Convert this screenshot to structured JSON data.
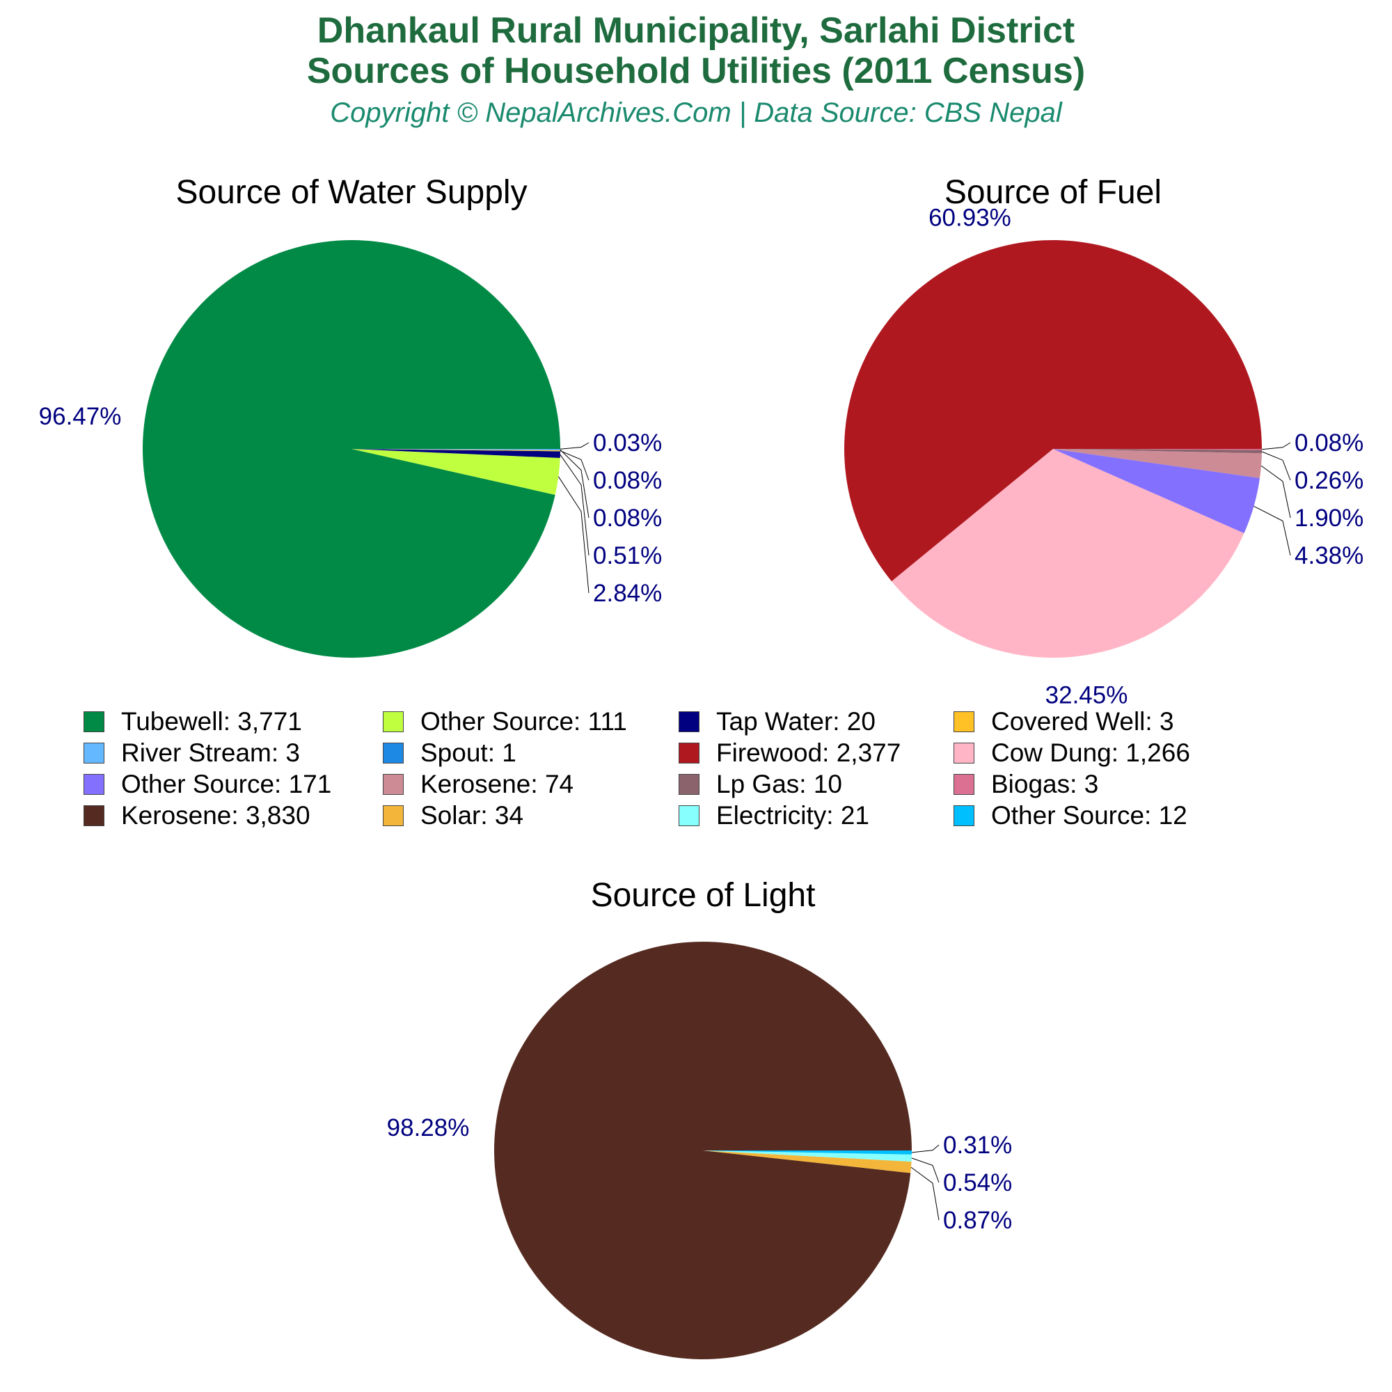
{
  "header": {
    "title_line1": "Dhankaul Rural Municipality, Sarlahi District",
    "title_line2": "Sources of Household Utilities (2011 Census)",
    "subtitle": "Copyright © NepalArchives.Com | Data Source: CBS Nepal"
  },
  "chart_data": [
    {
      "type": "pie",
      "title": "Source of Water Supply",
      "slices": [
        {
          "label": "Tubewell",
          "value": 3771,
          "percent_label": "96.47%",
          "color": "#008a45"
        },
        {
          "label": "Other Source",
          "value": 111,
          "percent_label": "2.84%",
          "color": "#bfff3f"
        },
        {
          "label": "Tap Water",
          "value": 20,
          "percent_label": "0.51%",
          "color": "#000080"
        },
        {
          "label": "Covered Well",
          "value": 3,
          "percent_label": "0.08%",
          "color": "#ffc125"
        },
        {
          "label": "River Stream",
          "value": 3,
          "percent_label": "0.08%",
          "color": "#63b8ff"
        },
        {
          "label": "Spout",
          "value": 1,
          "percent_label": "0.03%",
          "color": "#1e88e5"
        }
      ]
    },
    {
      "type": "pie",
      "title": "Source of Fuel",
      "slices": [
        {
          "label": "Firewood",
          "value": 2377,
          "percent_label": "60.93%",
          "color": "#b01820"
        },
        {
          "label": "Cow Dung",
          "value": 1266,
          "percent_label": "32.45%",
          "color": "#ffb5c5"
        },
        {
          "label": "Other Source",
          "value": 171,
          "percent_label": "4.38%",
          "color": "#8470ff"
        },
        {
          "label": "Kerosene",
          "value": 74,
          "percent_label": "1.90%",
          "color": "#cd8c95"
        },
        {
          "label": "Lp Gas",
          "value": 10,
          "percent_label": "0.26%",
          "color": "#8b636c"
        },
        {
          "label": "Biogas",
          "value": 3,
          "percent_label": "0.08%",
          "color": "#db7093"
        }
      ]
    },
    {
      "type": "pie",
      "title": "Source of Light",
      "slices": [
        {
          "label": "Kerosene",
          "value": 3830,
          "percent_label": "98.28%",
          "color": "#552a20"
        },
        {
          "label": "Solar",
          "value": 34,
          "percent_label": "0.87%",
          "color": "#f4b63a"
        },
        {
          "label": "Electricity",
          "value": 21,
          "percent_label": "0.54%",
          "color": "#87ffff"
        },
        {
          "label": "Other Source",
          "value": 12,
          "percent_label": "0.31%",
          "color": "#00bfff"
        }
      ]
    }
  ],
  "legend": [
    {
      "label": "Tubewell: 3,771",
      "color": "#008a45"
    },
    {
      "label": "Other Source: 111",
      "color": "#bfff3f"
    },
    {
      "label": "Tap Water: 20",
      "color": "#000080"
    },
    {
      "label": "Covered Well: 3",
      "color": "#ffc125"
    },
    {
      "label": "River Stream: 3",
      "color": "#63b8ff"
    },
    {
      "label": "Spout: 1",
      "color": "#1e88e5"
    },
    {
      "label": "Firewood: 2,377",
      "color": "#b01820"
    },
    {
      "label": "Cow Dung: 1,266",
      "color": "#ffb5c5"
    },
    {
      "label": "Other Source: 171",
      "color": "#8470ff"
    },
    {
      "label": "Kerosene: 74",
      "color": "#cd8c95"
    },
    {
      "label": "Lp Gas: 10",
      "color": "#8b636c"
    },
    {
      "label": "Biogas: 3",
      "color": "#db7093"
    },
    {
      "label": "Kerosene: 3,830",
      "color": "#552a20"
    },
    {
      "label": "Solar: 34",
      "color": "#f4b63a"
    },
    {
      "label": "Electricity: 21",
      "color": "#87ffff"
    },
    {
      "label": "Other Source: 12",
      "color": "#00bfff"
    }
  ],
  "label_color": "#000080"
}
